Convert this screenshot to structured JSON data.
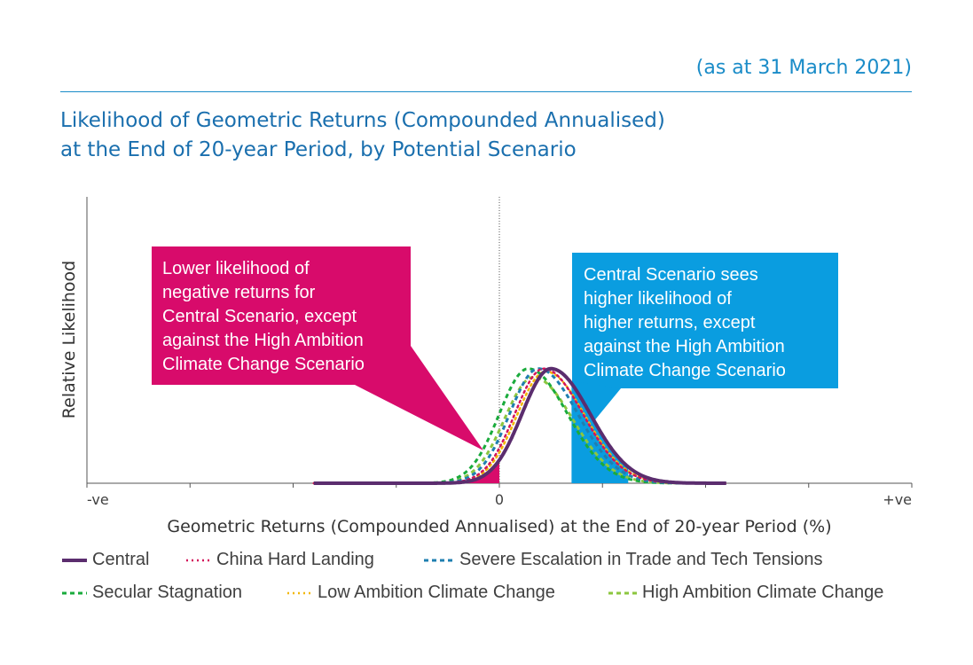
{
  "header": {
    "as_at": "(as at 31 March 2021)",
    "title_line1": "Likelihood of Geometric Returns (Compounded Annualised)",
    "title_line2": "at the End of 20-year Period, by Potential Scenario"
  },
  "annotations": {
    "left": [
      "Lower likelihood of",
      "negative returns for",
      "Central Scenario, except",
      "against the High Ambition",
      "Climate Change Scenario"
    ],
    "right": [
      "Central Scenario sees",
      "higher likelihood of",
      "higher returns, except",
      "against the High Ambition",
      "Climate Change Scenario"
    ]
  },
  "colors": {
    "central": "#5b2d6e",
    "china": "#d4145a",
    "severe": "#1f7fb0",
    "secular": "#1aab3c",
    "low_ambition": "#f2b705",
    "high_ambition": "#8cc63f",
    "box_left": "#d80b6b",
    "box_right": "#0a9de0"
  },
  "chart_data": {
    "type": "line",
    "title": "Likelihood of Geometric Returns (Compounded Annualised) at the End of 20-year Period, by Potential Scenario",
    "xlabel": "Geometric Returns (Compounded Annualised) at the End of 20-year Period (%)",
    "ylabel": "Relative Likelihood",
    "x_tick_labels": [
      "-ve",
      "0",
      "+ve"
    ],
    "xlim": [
      -4,
      4
    ],
    "ylim": [
      0,
      1.0
    ],
    "grid": false,
    "legend_position": "bottom",
    "series": [
      {
        "name": "Central",
        "style": "solid",
        "color_key": "central",
        "mean": 0.5,
        "sd_left": 0.28,
        "sd_right": 0.38,
        "peak": 0.4
      },
      {
        "name": "China Hard Landing",
        "style": "dotted",
        "color_key": "china",
        "mean": 0.43,
        "sd_left": 0.28,
        "sd_right": 0.38,
        "peak": 0.4
      },
      {
        "name": "Severe Escalation in Trade and Tech Tensions",
        "style": "dashed",
        "color_key": "severe",
        "mean": 0.38,
        "sd_left": 0.28,
        "sd_right": 0.38,
        "peak": 0.4
      },
      {
        "name": "Secular Stagnation",
        "style": "dashed",
        "color_key": "secular",
        "mean": 0.28,
        "sd_left": 0.28,
        "sd_right": 0.38,
        "peak": 0.4
      },
      {
        "name": "Low Ambition Climate Change",
        "style": "dotted",
        "color_key": "low_ambition",
        "mean": 0.45,
        "sd_left": 0.28,
        "sd_right": 0.38,
        "peak": 0.39
      },
      {
        "name": "High Ambition Climate Change",
        "style": "dashed",
        "color_key": "high_ambition",
        "mean": 0.33,
        "sd_left": 0.28,
        "sd_right": 0.38,
        "peak": 0.37
      }
    ]
  }
}
